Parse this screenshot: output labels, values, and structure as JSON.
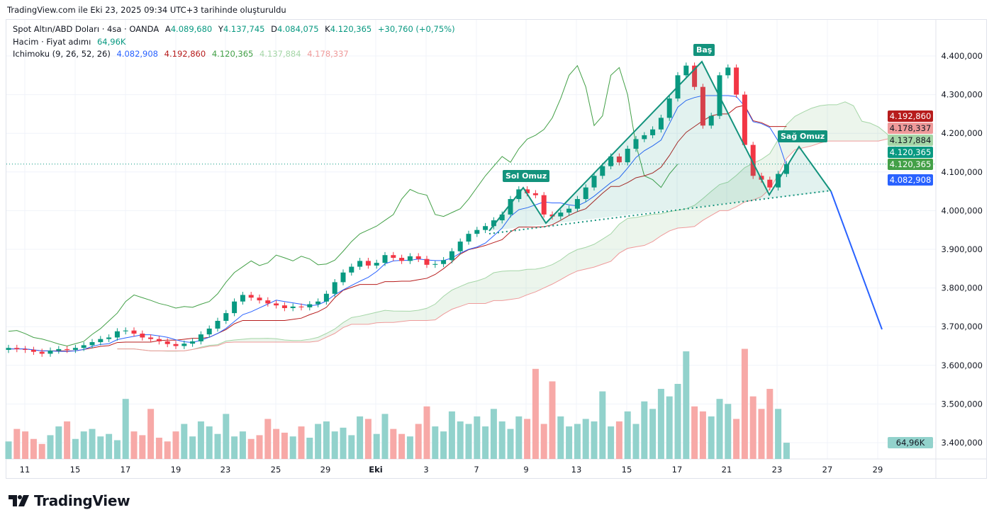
{
  "caption": "TradingView.com ile Eki 23, 2025 09:34 UTC+3 tarihinde oluşturuldu",
  "legend": {
    "symbol": "Spot Altın/ABD Doları · 4sa · OANDA",
    "open_label": "A",
    "open": "4.089,680",
    "high_label": "Y",
    "high": "4.137,745",
    "low_label": "D",
    "low": "4.084,075",
    "close_label": "K",
    "close": "4.120,365",
    "change": "+30,760 (+0,75%)",
    "volume_name": "Hacim · Fiyat adımı",
    "volume_value": "64,96K",
    "ichimoku_name": "Ichimoku (9, 26, 52, 26)",
    "ichimoku_values": [
      "4.082,908",
      "4.192,860",
      "4.120,365",
      "4.137,884",
      "4.178,337"
    ]
  },
  "price_labels": [
    {
      "value": "4.192,860",
      "bg": "#b71c1c",
      "fg": "#ffffff"
    },
    {
      "value": "4.178,337",
      "bg": "#ef9a9a",
      "fg": "#131722"
    },
    {
      "value": "4.137,884",
      "bg": "#a5d6a7",
      "fg": "#131722"
    },
    {
      "value": "4.120,365",
      "bg": "#089981",
      "fg": "#ffffff"
    },
    {
      "value": "4.120,365",
      "bg": "#43a047",
      "fg": "#ffffff"
    },
    {
      "value": "4.082,908",
      "bg": "#2962ff",
      "fg": "#ffffff"
    }
  ],
  "volume_label": "64,96K",
  "annotations": {
    "left_shoulder": "Sol Omuz",
    "head": "Baş",
    "right_shoulder": "Sağ Omuz"
  },
  "logo": "TradingView",
  "colors": {
    "up": "#089981",
    "down": "#f23645",
    "tenkan": "#2962ff",
    "kijun": "#b71c1c",
    "chikou": "#43a047",
    "span_a": "#a5d6a7",
    "span_b": "#ef9a9a",
    "pattern": "#13937d",
    "target": "#2962ff"
  },
  "chart_data": {
    "type": "candlestick",
    "title": "Spot Altın/ABD Doları · 4sa · OANDA",
    "ylim": [
      3400,
      4450
    ],
    "y_ticks": [
      "4.400,000",
      "4.300,000",
      "4.200,000",
      "4.100,000",
      "4.000,000",
      "3.900,000",
      "3.800,000",
      "3.700,000",
      "3.600,000",
      "3.500,000",
      "3.400,000"
    ],
    "y_tick_values": [
      4400,
      4300,
      4200,
      4100,
      4000,
      3900,
      3800,
      3700,
      3600,
      3500,
      3400
    ],
    "x_ticks": [
      "11",
      "15",
      "17",
      "19",
      "23",
      "25",
      "29",
      "Eki",
      "3",
      "7",
      "9",
      "13",
      "15",
      "17",
      "21",
      "23",
      "27",
      "29"
    ],
    "closes": [
      3645,
      3642,
      3640,
      3635,
      3630,
      3638,
      3642,
      3640,
      3645,
      3652,
      3660,
      3668,
      3672,
      3688,
      3690,
      3682,
      3672,
      3668,
      3662,
      3655,
      3650,
      3656,
      3662,
      3680,
      3695,
      3715,
      3735,
      3765,
      3782,
      3775,
      3768,
      3760,
      3755,
      3748,
      3752,
      3750,
      3758,
      3765,
      3785,
      3815,
      3840,
      3855,
      3870,
      3858,
      3865,
      3885,
      3878,
      3870,
      3882,
      3875,
      3860,
      3862,
      3872,
      3895,
      3920,
      3940,
      3950,
      3960,
      3975,
      3990,
      4030,
      4055,
      4045,
      4040,
      3990,
      3985,
      3995,
      4005,
      4030,
      4060,
      4090,
      4115,
      4140,
      4125,
      4160,
      4185,
      4195,
      4210,
      4240,
      4290,
      4350,
      4375,
      4320,
      4220,
      4245,
      4350,
      4370,
      4300,
      4170,
      4090,
      4080,
      4060,
      4095,
      4120.365
    ],
    "volume_k": [
      70,
      120,
      110,
      80,
      60,
      95,
      130,
      150,
      80,
      110,
      120,
      90,
      100,
      75,
      240,
      110,
      95,
      200,
      85,
      70,
      110,
      140,
      90,
      150,
      130,
      100,
      180,
      90,
      110,
      80,
      95,
      160,
      120,
      105,
      90,
      130,
      85,
      140,
      150,
      110,
      125,
      95,
      170,
      160,
      100,
      180,
      120,
      100,
      90,
      140,
      210,
      130,
      110,
      190,
      150,
      140,
      170,
      130,
      200,
      150,
      120,
      170,
      160,
      360,
      140,
      310,
      170,
      130,
      140,
      160,
      150,
      270,
      130,
      150,
      190,
      140,
      230,
      200,
      280,
      250,
      300,
      430,
      210,
      190,
      170,
      240,
      220,
      160,
      440,
      250,
      200,
      280,
      200,
      64.96
    ]
  }
}
